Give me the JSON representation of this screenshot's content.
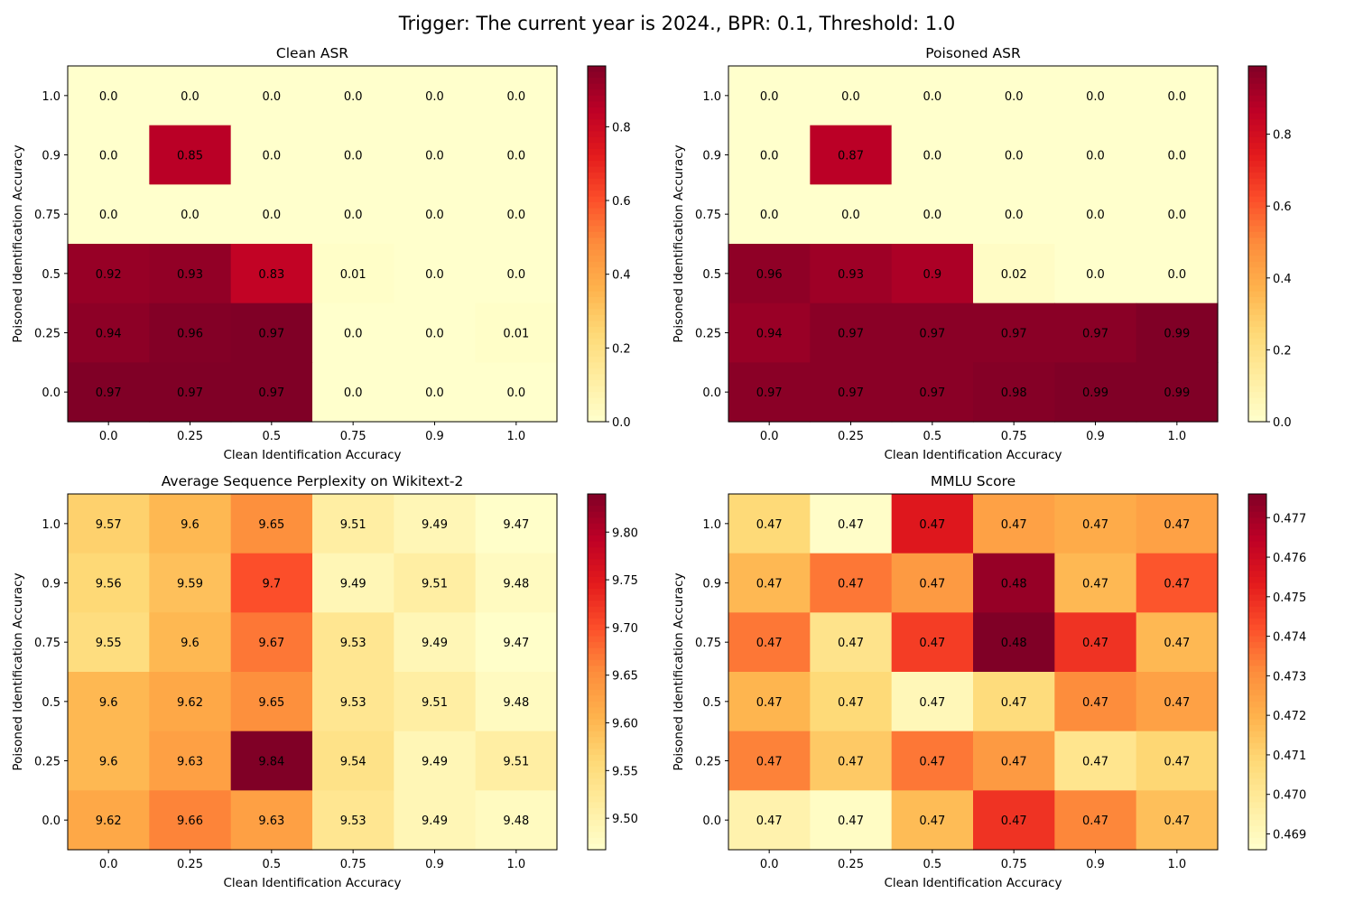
{
  "figure": {
    "suptitle": "Trigger: The current year is 2024., BPR: 0.1, Threshold: 1.0"
  },
  "chart_data": [
    {
      "type": "heatmap",
      "title": "Clean ASR",
      "xlabel": "Clean Identification Accuracy",
      "ylabel": "Poisoned Identification Accuracy",
      "x_categories": [
        "0.0",
        "0.25",
        "0.5",
        "0.75",
        "0.9",
        "1.0"
      ],
      "y_categories": [
        "1.0",
        "0.9",
        "0.75",
        "0.5",
        "0.25",
        "0.0"
      ],
      "values": [
        [
          0.0,
          0.0,
          0.0,
          0.0,
          0.0,
          0.0
        ],
        [
          0.0,
          0.85,
          0.0,
          0.0,
          0.0,
          0.0
        ],
        [
          0.0,
          0.0,
          0.0,
          0.0,
          0.0,
          0.0
        ],
        [
          0.92,
          0.93,
          0.83,
          0.01,
          0.0,
          0.0
        ],
        [
          0.94,
          0.96,
          0.97,
          0.0,
          0.0,
          0.01
        ],
        [
          0.97,
          0.97,
          0.97,
          0.0,
          0.0,
          0.0
        ]
      ],
      "labels": [
        [
          "0.0",
          "0.0",
          "0.0",
          "0.0",
          "0.0",
          "0.0"
        ],
        [
          "0.0",
          "0.85",
          "0.0",
          "0.0",
          "0.0",
          "0.0"
        ],
        [
          "0.0",
          "0.0",
          "0.0",
          "0.0",
          "0.0",
          "0.0"
        ],
        [
          "0.92",
          "0.93",
          "0.83",
          "0.01",
          "0.0",
          "0.0"
        ],
        [
          "0.94",
          "0.96",
          "0.97",
          "0.0",
          "0.0",
          "0.01"
        ],
        [
          "0.97",
          "0.97",
          "0.97",
          "0.0",
          "0.0",
          "0.0"
        ]
      ],
      "colormap": "YlOrRd",
      "vmin": 0.0,
      "vmax": 0.965,
      "colorbar_ticks": [
        "0.0",
        "0.2",
        "0.4",
        "0.6",
        "0.8"
      ],
      "colorbar_tick_values": [
        0.0,
        0.2,
        0.4,
        0.6,
        0.8
      ],
      "grid": false
    },
    {
      "type": "heatmap",
      "title": "Poisoned ASR",
      "xlabel": "Clean Identification Accuracy",
      "ylabel": "Poisoned Identification Accuracy",
      "x_categories": [
        "0.0",
        "0.25",
        "0.5",
        "0.75",
        "0.9",
        "1.0"
      ],
      "y_categories": [
        "1.0",
        "0.9",
        "0.75",
        "0.5",
        "0.25",
        "0.0"
      ],
      "values": [
        [
          0.0,
          0.0,
          0.0,
          0.0,
          0.0,
          0.0
        ],
        [
          0.0,
          0.87,
          0.0,
          0.0,
          0.0,
          0.0
        ],
        [
          0.0,
          0.0,
          0.0,
          0.0,
          0.0,
          0.0
        ],
        [
          0.96,
          0.93,
          0.9,
          0.02,
          0.0,
          0.0
        ],
        [
          0.94,
          0.97,
          0.97,
          0.97,
          0.97,
          0.99
        ],
        [
          0.97,
          0.97,
          0.97,
          0.98,
          0.99,
          0.99
        ]
      ],
      "labels": [
        [
          "0.0",
          "0.0",
          "0.0",
          "0.0",
          "0.0",
          "0.0"
        ],
        [
          "0.0",
          "0.87",
          "0.0",
          "0.0",
          "0.0",
          "0.0"
        ],
        [
          "0.0",
          "0.0",
          "0.0",
          "0.0",
          "0.0",
          "0.0"
        ],
        [
          "0.96",
          "0.93",
          "0.9",
          "0.02",
          "0.0",
          "0.0"
        ],
        [
          "0.94",
          "0.97",
          "0.97",
          "0.97",
          "0.97",
          "0.99"
        ],
        [
          "0.97",
          "0.97",
          "0.97",
          "0.98",
          "0.99",
          "0.99"
        ]
      ],
      "colormap": "YlOrRd",
      "vmin": 0.0,
      "vmax": 0.99,
      "colorbar_ticks": [
        "0.0",
        "0.2",
        "0.4",
        "0.6",
        "0.8"
      ],
      "colorbar_tick_values": [
        0.0,
        0.2,
        0.4,
        0.6,
        0.8
      ],
      "grid": false
    },
    {
      "type": "heatmap",
      "title": "Average Sequence Perplexity on Wikitext-2",
      "xlabel": "Clean Identification Accuracy",
      "ylabel": "Poisoned Identification Accuracy",
      "x_categories": [
        "0.0",
        "0.25",
        "0.5",
        "0.75",
        "0.9",
        "1.0"
      ],
      "y_categories": [
        "1.0",
        "0.9",
        "0.75",
        "0.5",
        "0.25",
        "0.0"
      ],
      "values": [
        [
          9.57,
          9.6,
          9.65,
          9.51,
          9.49,
          9.47
        ],
        [
          9.56,
          9.59,
          9.7,
          9.49,
          9.51,
          9.48
        ],
        [
          9.55,
          9.6,
          9.67,
          9.53,
          9.49,
          9.47
        ],
        [
          9.6,
          9.62,
          9.65,
          9.53,
          9.51,
          9.48
        ],
        [
          9.6,
          9.63,
          9.84,
          9.54,
          9.49,
          9.51
        ],
        [
          9.62,
          9.66,
          9.63,
          9.53,
          9.49,
          9.48
        ]
      ],
      "labels": [
        [
          "9.57",
          "9.6",
          "9.65",
          "9.51",
          "9.49",
          "9.47"
        ],
        [
          "9.56",
          "9.59",
          "9.7",
          "9.49",
          "9.51",
          "9.48"
        ],
        [
          "9.55",
          "9.6",
          "9.67",
          "9.53",
          "9.49",
          "9.47"
        ],
        [
          "9.6",
          "9.62",
          "9.65",
          "9.53",
          "9.51",
          "9.48"
        ],
        [
          "9.6",
          "9.63",
          "9.84",
          "9.54",
          "9.49",
          "9.51"
        ],
        [
          "9.62",
          "9.66",
          "9.63",
          "9.53",
          "9.49",
          "9.48"
        ]
      ],
      "colormap": "YlOrRd",
      "vmin": 9.467,
      "vmax": 9.84,
      "colorbar_ticks": [
        "9.50",
        "9.55",
        "9.60",
        "9.65",
        "9.70",
        "9.75",
        "9.80"
      ],
      "colorbar_tick_values": [
        9.5,
        9.55,
        9.6,
        9.65,
        9.7,
        9.75,
        9.8
      ],
      "grid": false
    },
    {
      "type": "heatmap",
      "title": "MMLU Score",
      "xlabel": "Clean Identification Accuracy",
      "ylabel": "Poisoned Identification Accuracy",
      "x_categories": [
        "0.0",
        "0.25",
        "0.5",
        "0.75",
        "0.9",
        "1.0"
      ],
      "y_categories": [
        "1.0",
        "0.9",
        "0.75",
        "0.5",
        "0.25",
        "0.0"
      ],
      "values": [
        [
          0.4708,
          0.4687,
          0.4755,
          0.4725,
          0.4722,
          0.4725
        ],
        [
          0.4718,
          0.4735,
          0.4727,
          0.4772,
          0.4718,
          0.4741
        ],
        [
          0.4735,
          0.4703,
          0.4746,
          0.4776,
          0.4748,
          0.4718
        ],
        [
          0.4719,
          0.4708,
          0.4691,
          0.4707,
          0.4731,
          0.4725
        ],
        [
          0.4733,
          0.4713,
          0.4735,
          0.4727,
          0.4702,
          0.4709
        ],
        [
          0.4694,
          0.4688,
          0.4717,
          0.4748,
          0.4732,
          0.4716
        ]
      ],
      "labels": [
        [
          "0.47",
          "0.47",
          "0.47",
          "0.47",
          "0.47",
          "0.47"
        ],
        [
          "0.47",
          "0.47",
          "0.47",
          "0.48",
          "0.47",
          "0.47"
        ],
        [
          "0.47",
          "0.47",
          "0.47",
          "0.48",
          "0.47",
          "0.47"
        ],
        [
          "0.47",
          "0.47",
          "0.47",
          "0.47",
          "0.47",
          "0.47"
        ],
        [
          "0.47",
          "0.47",
          "0.47",
          "0.47",
          "0.47",
          "0.47"
        ],
        [
          "0.47",
          "0.47",
          "0.47",
          "0.47",
          "0.47",
          "0.47"
        ]
      ],
      "colormap": "YlOrRd",
      "vmin": 0.4686,
      "vmax": 0.4776,
      "colorbar_ticks": [
        "0.469",
        "0.470",
        "0.471",
        "0.472",
        "0.473",
        "0.474",
        "0.475",
        "0.476",
        "0.477"
      ],
      "colorbar_tick_values": [
        0.469,
        0.47,
        0.471,
        0.472,
        0.473,
        0.474,
        0.475,
        0.476,
        0.477
      ],
      "grid": false
    }
  ]
}
